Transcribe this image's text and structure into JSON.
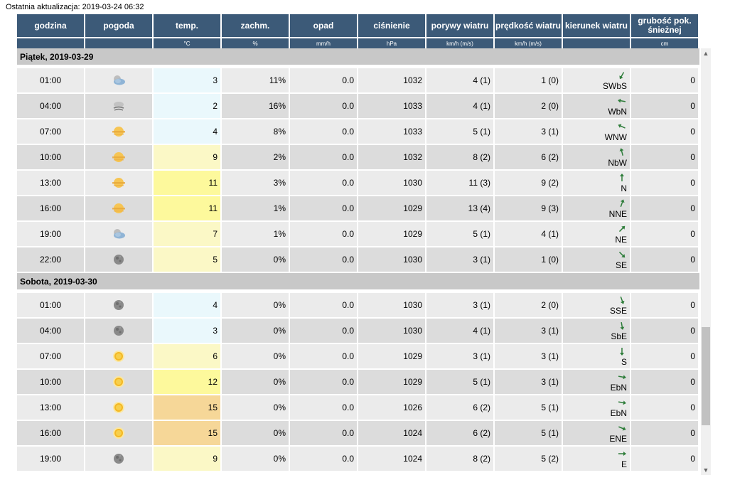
{
  "update_text": "Ostatnia aktualizacja: 2019-03-24 06:32",
  "headers": [
    {
      "label": "godzina",
      "unit": ""
    },
    {
      "label": "pogoda",
      "unit": ""
    },
    {
      "label": "temp.",
      "unit": "°C"
    },
    {
      "label": "zachm.",
      "unit": "%"
    },
    {
      "label": "opad",
      "unit": "mm/h"
    },
    {
      "label": "ciśnienie",
      "unit": "hPa"
    },
    {
      "label": "porywy wiatru",
      "unit": "km/h (m/s)"
    },
    {
      "label": "prędkość wiatru",
      "unit": "km/h (m/s)"
    },
    {
      "label": "kierunek wiatru",
      "unit": ""
    },
    {
      "label": "grubość pok. śnieżnej",
      "unit": "cm"
    }
  ],
  "days": [
    {
      "label": "Piątek, 2019-03-29",
      "rows": [
        {
          "hour": "01:00",
          "icon": "cloud-partly-icon",
          "temp": "3",
          "temp_class": "cold",
          "clouds": "11%",
          "precip": "0.0",
          "pressure": "1032",
          "gusts": "4 (1)",
          "speed": "1 (0)",
          "dir": "SWbS",
          "angle": 30,
          "snow": "0"
        },
        {
          "hour": "04:00",
          "icon": "cloud-wind-icon",
          "temp": "2",
          "temp_class": "cold",
          "clouds": "16%",
          "precip": "0.0",
          "pressure": "1033",
          "gusts": "4 (1)",
          "speed": "2 (0)",
          "dir": "WbN",
          "angle": 100,
          "snow": "0"
        },
        {
          "hour": "07:00",
          "icon": "sun-haze-icon",
          "temp": "4",
          "temp_class": "cold",
          "clouds": "8%",
          "precip": "0.0",
          "pressure": "1033",
          "gusts": "5 (1)",
          "speed": "3 (1)",
          "dir": "WNW",
          "angle": 115,
          "snow": "0"
        },
        {
          "hour": "10:00",
          "icon": "sun-haze-icon",
          "temp": "9",
          "temp_class": "mild",
          "clouds": "2%",
          "precip": "0.0",
          "pressure": "1032",
          "gusts": "8 (2)",
          "speed": "6 (2)",
          "dir": "NbW",
          "angle": 165,
          "snow": "0"
        },
        {
          "hour": "13:00",
          "icon": "sun-haze-icon",
          "temp": "11",
          "temp_class": "warm",
          "clouds": "3%",
          "precip": "0.0",
          "pressure": "1030",
          "gusts": "11 (3)",
          "speed": "9 (2)",
          "dir": "N",
          "angle": 180,
          "snow": "0"
        },
        {
          "hour": "16:00",
          "icon": "sun-haze-icon",
          "temp": "11",
          "temp_class": "warm",
          "clouds": "1%",
          "precip": "0.0",
          "pressure": "1029",
          "gusts": "13 (4)",
          "speed": "9 (3)",
          "dir": "NNE",
          "angle": 200,
          "snow": "0"
        },
        {
          "hour": "19:00",
          "icon": "cloud-partly-icon",
          "temp": "7",
          "temp_class": "mild",
          "clouds": "1%",
          "precip": "0.0",
          "pressure": "1029",
          "gusts": "5 (1)",
          "speed": "4 (1)",
          "dir": "NE",
          "angle": 225,
          "snow": "0"
        },
        {
          "hour": "22:00",
          "icon": "moon-icon",
          "temp": "5",
          "temp_class": "mild",
          "clouds": "0%",
          "precip": "0.0",
          "pressure": "1030",
          "gusts": "3 (1)",
          "speed": "1 (0)",
          "dir": "SE",
          "angle": 315,
          "snow": "0"
        }
      ]
    },
    {
      "label": "Sobota, 2019-03-30",
      "rows": [
        {
          "hour": "01:00",
          "icon": "moon-icon",
          "temp": "4",
          "temp_class": "cold",
          "clouds": "0%",
          "precip": "0.0",
          "pressure": "1030",
          "gusts": "3 (1)",
          "speed": "2 (0)",
          "dir": "SSE",
          "angle": 340,
          "snow": "0"
        },
        {
          "hour": "04:00",
          "icon": "moon-icon",
          "temp": "3",
          "temp_class": "cold",
          "clouds": "0%",
          "precip": "0.0",
          "pressure": "1030",
          "gusts": "4 (1)",
          "speed": "3 (1)",
          "dir": "SbE",
          "angle": 350,
          "snow": "0"
        },
        {
          "hour": "07:00",
          "icon": "sun-icon",
          "temp": "6",
          "temp_class": "mild",
          "clouds": "0%",
          "precip": "0.0",
          "pressure": "1029",
          "gusts": "3 (1)",
          "speed": "3 (1)",
          "dir": "S",
          "angle": 0,
          "snow": "0"
        },
        {
          "hour": "10:00",
          "icon": "sun-icon",
          "temp": "12",
          "temp_class": "warm",
          "clouds": "0%",
          "precip": "0.0",
          "pressure": "1029",
          "gusts": "5 (1)",
          "speed": "3 (1)",
          "dir": "EbN",
          "angle": 280,
          "snow": "0"
        },
        {
          "hour": "13:00",
          "icon": "sun-icon",
          "temp": "15",
          "temp_class": "hot",
          "clouds": "0%",
          "precip": "0.0",
          "pressure": "1026",
          "gusts": "6 (2)",
          "speed": "5 (1)",
          "dir": "EbN",
          "angle": 280,
          "snow": "0"
        },
        {
          "hour": "16:00",
          "icon": "sun-icon",
          "temp": "15",
          "temp_class": "hot",
          "clouds": "0%",
          "precip": "0.0",
          "pressure": "1024",
          "gusts": "6 (2)",
          "speed": "5 (1)",
          "dir": "ENE",
          "angle": 292,
          "snow": "0"
        },
        {
          "hour": "19:00",
          "icon": "moon-icon",
          "temp": "9",
          "temp_class": "mild",
          "clouds": "0%",
          "precip": "0.0",
          "pressure": "1024",
          "gusts": "8 (2)",
          "speed": "5 (2)",
          "dir": "E",
          "angle": 270,
          "snow": "0"
        }
      ]
    }
  ],
  "colors": {
    "header": "#3c5a78",
    "arrow": "#2e7d3a"
  }
}
